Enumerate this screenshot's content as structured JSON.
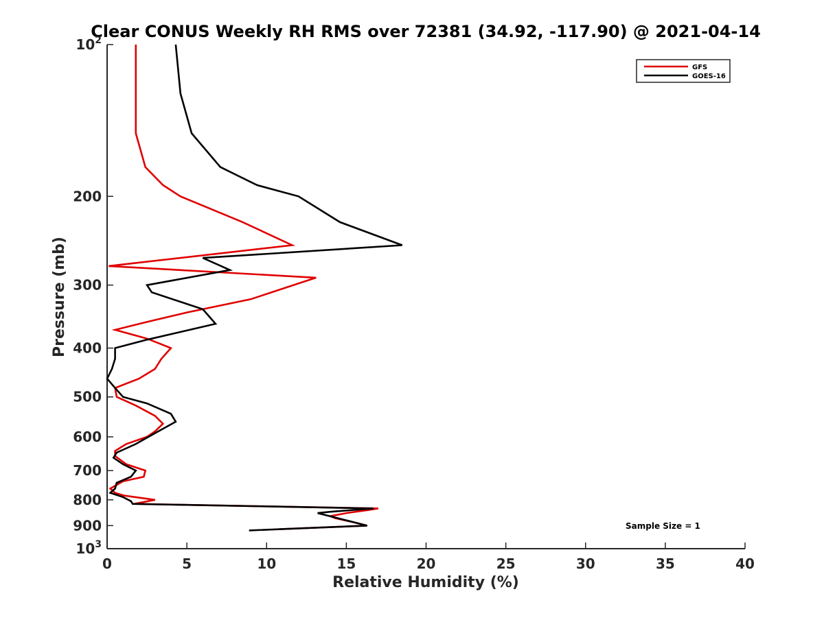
{
  "chart_data": {
    "type": "line",
    "title": "Clear CONUS Weekly RH RMS over 72381 (34.92, -117.90) @ 2021-04-14",
    "xlabel": "Relative Humidity (%)",
    "ylabel": "Pressure (mb)",
    "xlim": [
      0,
      40
    ],
    "ylim": [
      100,
      1000
    ],
    "yscale": "log",
    "y_reversed": true,
    "grid": false,
    "legend_position": "top-right",
    "x_ticks": [
      {
        "value": 0,
        "label": "0"
      },
      {
        "value": 5,
        "label": "5"
      },
      {
        "value": 10,
        "label": "10"
      },
      {
        "value": 15,
        "label": "15"
      },
      {
        "value": 20,
        "label": "20"
      },
      {
        "value": 25,
        "label": "25"
      },
      {
        "value": 30,
        "label": "30"
      },
      {
        "value": 35,
        "label": "35"
      },
      {
        "value": 40,
        "label": "40"
      }
    ],
    "y_ticks": [
      {
        "value": 100,
        "base": "10",
        "exp": "2"
      },
      {
        "value": 200,
        "label": "200"
      },
      {
        "value": 300,
        "label": "300"
      },
      {
        "value": 400,
        "label": "400"
      },
      {
        "value": 500,
        "label": "500"
      },
      {
        "value": 600,
        "label": "600"
      },
      {
        "value": 700,
        "label": "700"
      },
      {
        "value": 800,
        "label": "800"
      },
      {
        "value": 900,
        "label": "900"
      },
      {
        "value": 1000,
        "base": "10",
        "exp": "3"
      }
    ],
    "annotation": "Sample Size = 1",
    "series": [
      {
        "name": "GFS",
        "color": "#e00000",
        "points": [
          [
            1.8,
            100
          ],
          [
            1.8,
            125
          ],
          [
            1.8,
            150
          ],
          [
            2.4,
            175
          ],
          [
            3.5,
            190
          ],
          [
            4.6,
            200
          ],
          [
            8.5,
            225
          ],
          [
            11.6,
            250
          ],
          [
            0.1,
            275
          ],
          [
            13.1,
            290
          ],
          [
            9.0,
            320
          ],
          [
            5.0,
            340
          ],
          [
            2.5,
            355
          ],
          [
            0.5,
            368
          ],
          [
            2.5,
            383
          ],
          [
            4.0,
            400
          ],
          [
            3.4,
            420
          ],
          [
            3.0,
            440
          ],
          [
            2.0,
            460
          ],
          [
            0.5,
            480
          ],
          [
            0.6,
            500
          ],
          [
            1.8,
            520
          ],
          [
            3.0,
            545
          ],
          [
            3.5,
            565
          ],
          [
            3.0,
            585
          ],
          [
            2.5,
            600
          ],
          [
            1.2,
            620
          ],
          [
            0.5,
            640
          ],
          [
            0.5,
            655
          ],
          [
            1.2,
            680
          ],
          [
            2.4,
            700
          ],
          [
            2.3,
            720
          ],
          [
            1.0,
            735
          ],
          [
            0.2,
            760
          ],
          [
            0.5,
            775
          ],
          [
            1.1,
            785
          ],
          [
            3.0,
            800
          ],
          [
            1.7,
            815
          ],
          [
            17.0,
            832
          ],
          [
            16.4,
            838
          ],
          [
            15.0,
            850
          ],
          [
            14.0,
            862
          ],
          [
            14.3,
            870
          ],
          [
            15.5,
            887
          ],
          [
            16.3,
            900
          ],
          [
            10.8,
            915
          ]
        ]
      },
      {
        "name": "GOES-16",
        "color": "#000000",
        "points": [
          [
            4.3,
            100
          ],
          [
            4.6,
            125
          ],
          [
            5.3,
            150
          ],
          [
            7.1,
            175
          ],
          [
            9.4,
            190
          ],
          [
            12.0,
            200
          ],
          [
            14.6,
            225
          ],
          [
            18.5,
            250
          ],
          [
            6.0,
            265
          ],
          [
            7.7,
            280
          ],
          [
            2.5,
            300
          ],
          [
            2.8,
            310
          ],
          [
            6.0,
            335
          ],
          [
            6.8,
            358
          ],
          [
            2.5,
            385
          ],
          [
            0.5,
            400
          ],
          [
            0.5,
            420
          ],
          [
            0.3,
            440
          ],
          [
            0.0,
            460
          ],
          [
            0.5,
            480
          ],
          [
            1.0,
            500
          ],
          [
            2.5,
            515
          ],
          [
            4.0,
            540
          ],
          [
            4.3,
            560
          ],
          [
            3.0,
            590
          ],
          [
            1.8,
            620
          ],
          [
            0.6,
            645
          ],
          [
            0.4,
            660
          ],
          [
            1.0,
            680
          ],
          [
            1.8,
            700
          ],
          [
            1.5,
            720
          ],
          [
            0.6,
            740
          ],
          [
            0.5,
            760
          ],
          [
            0.2,
            775
          ],
          [
            1.0,
            790
          ],
          [
            1.5,
            805
          ],
          [
            1.6,
            815
          ],
          [
            16.7,
            832
          ],
          [
            14.0,
            845
          ],
          [
            13.2,
            850
          ],
          [
            16.3,
            900
          ],
          [
            8.9,
            920
          ]
        ]
      }
    ]
  }
}
